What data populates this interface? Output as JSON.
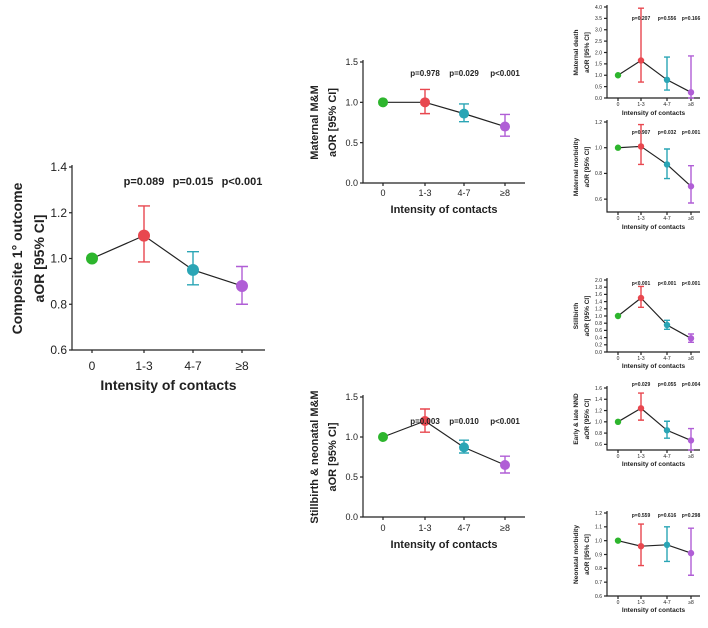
{
  "colors": {
    "cat0": "#2db52d",
    "cat1": "#e8474f",
    "cat2": "#2aa5b5",
    "cat3": "#b05ed6"
  },
  "chart_data": [
    {
      "type": "scatter",
      "title": "",
      "xlabel": "Intensity of contacts",
      "ylabel": [
        "Composite 1° outcome",
        "aOR [95% CI]"
      ],
      "categories": [
        "0",
        "1-3",
        "4-7",
        "≥8"
      ],
      "ylim": [
        0.6,
        1.4
      ],
      "yticks": [
        "0.6",
        "0.8",
        "1.0",
        "1.2",
        "1.4"
      ],
      "values": [
        1.0,
        1.1,
        0.95,
        0.88
      ],
      "ci_low": [
        1.0,
        0.985,
        0.885,
        0.8
      ],
      "ci_high": [
        1.0,
        1.23,
        1.03,
        0.965
      ],
      "pvalues": [
        "p=0.089",
        "p=0.015",
        "p<0.001"
      ]
    },
    {
      "type": "scatter",
      "title": "",
      "xlabel": "Intensity of contacts",
      "ylabel": [
        "Maternal M&M",
        "aOR [95% CI]"
      ],
      "categories": [
        "0",
        "1-3",
        "4-7",
        "≥8"
      ],
      "ylim": [
        0,
        1.5
      ],
      "yticks": [
        "0.0",
        "0.5",
        "1.0",
        "1.5"
      ],
      "values": [
        1.0,
        1.0,
        0.86,
        0.7
      ],
      "ci_low": [
        1.0,
        0.86,
        0.76,
        0.58
      ],
      "ci_high": [
        1.0,
        1.16,
        0.98,
        0.85
      ],
      "pvalues": [
        "p=0.978",
        "p=0.029",
        "p<0.001"
      ]
    },
    {
      "type": "scatter",
      "title": "",
      "xlabel": "Intensity of contacts",
      "ylabel": [
        "Stillbirth & neonatal M&M",
        "aOR [95% CI]"
      ],
      "categories": [
        "0",
        "1-3",
        "4-7",
        "≥8"
      ],
      "ylim": [
        0,
        1.5
      ],
      "yticks": [
        "0.0",
        "0.5",
        "1.0",
        "1.5"
      ],
      "values": [
        1.0,
        1.2,
        0.87,
        0.65
      ],
      "ci_low": [
        1.0,
        1.06,
        0.8,
        0.55
      ],
      "ci_high": [
        1.0,
        1.35,
        0.96,
        0.76
      ],
      "pvalues": [
        "p=0.003",
        "p=0.010",
        "p<0.001"
      ]
    },
    {
      "type": "scatter",
      "title": "",
      "xlabel": "Intensity of contacts",
      "ylabel": [
        "Maternal death",
        "aOR [95% CI]"
      ],
      "categories": [
        "0",
        "1-3",
        "4-7",
        "≥8"
      ],
      "ylim": [
        0,
        4
      ],
      "yticks": [
        "0.0",
        "0.5",
        "1.0",
        "1.5",
        "2.0",
        "2.5",
        "3.0",
        "3.5",
        "4.0"
      ],
      "values": [
        1.0,
        1.65,
        0.8,
        0.25
      ],
      "ci_low": [
        1.0,
        0.7,
        0.35,
        0.0
      ],
      "ci_high": [
        1.0,
        3.95,
        1.8,
        1.85
      ],
      "pvalues": [
        "p=0.207",
        "p=0.556",
        "p=0.166"
      ]
    },
    {
      "type": "scatter",
      "title": "",
      "xlabel": "Intensity of contacts",
      "ylabel": [
        "Maternal morbidity",
        "aOR [95% CI]"
      ],
      "categories": [
        "0",
        "1-3",
        "4-7",
        "≥8"
      ],
      "ylim": [
        0.5,
        1.2
      ],
      "yticks": [
        "0.6",
        "0.8",
        "1.0",
        "1.2"
      ],
      "values": [
        1.0,
        1.01,
        0.87,
        0.7
      ],
      "ci_low": [
        1.0,
        0.87,
        0.76,
        0.57
      ],
      "ci_high": [
        1.0,
        1.18,
        0.99,
        0.86
      ],
      "pvalues": [
        "p=0.907",
        "p=0.032",
        "p=0.001"
      ]
    },
    {
      "type": "scatter",
      "title": "",
      "xlabel": "Intensity of contacts",
      "ylabel": [
        "Stillbirth",
        "aOR [95% CI]"
      ],
      "categories": [
        "0",
        "1-3",
        "4-7",
        "≥8"
      ],
      "ylim": [
        0,
        2
      ],
      "yticks": [
        "0.0",
        "0.2",
        "0.4",
        "0.6",
        "0.8",
        "1.0",
        "1.2",
        "1.4",
        "1.6",
        "1.8",
        "2.0"
      ],
      "values": [
        1.0,
        1.5,
        0.75,
        0.38
      ],
      "ci_low": [
        1.0,
        1.24,
        0.63,
        0.27
      ],
      "ci_high": [
        1.0,
        1.82,
        0.88,
        0.5
      ],
      "pvalues": [
        "p<0.001",
        "p<0.001",
        "p<0.001"
      ]
    },
    {
      "type": "scatter",
      "title": "",
      "xlabel": "Intensity of contacts",
      "ylabel": [
        "Early & late NND",
        "aOR [95% CI]"
      ],
      "categories": [
        "0",
        "1-3",
        "4-7",
        "≥8"
      ],
      "ylim": [
        0.5,
        1.6
      ],
      "yticks": [
        "0.6",
        "0.8",
        "1.0",
        "1.2",
        "1.4",
        "1.6"
      ],
      "values": [
        1.0,
        1.24,
        0.85,
        0.67
      ],
      "ci_low": [
        1.0,
        1.03,
        0.71,
        0.5
      ],
      "ci_high": [
        1.0,
        1.51,
        1.01,
        0.88
      ],
      "pvalues": [
        "p=0.029",
        "p=0.055",
        "p=0.004"
      ]
    },
    {
      "type": "scatter",
      "title": "",
      "xlabel": "Intensity of contacts",
      "ylabel": [
        "Neonatal morbidity",
        "aOR [95% CI]"
      ],
      "categories": [
        "0",
        "1-3",
        "4-7",
        "≥8"
      ],
      "ylim": [
        0.6,
        1.2
      ],
      "yticks": [
        "0.6",
        "0.7",
        "0.8",
        "0.9",
        "1.0",
        "1.1",
        "1.2"
      ],
      "values": [
        1.0,
        0.96,
        0.97,
        0.91
      ],
      "ci_low": [
        1.0,
        0.82,
        0.85,
        0.75
      ],
      "ci_high": [
        1.0,
        1.12,
        1.1,
        1.09
      ],
      "pvalues": [
        "p=0.559",
        "p=0.616",
        "p=0.298"
      ]
    }
  ]
}
